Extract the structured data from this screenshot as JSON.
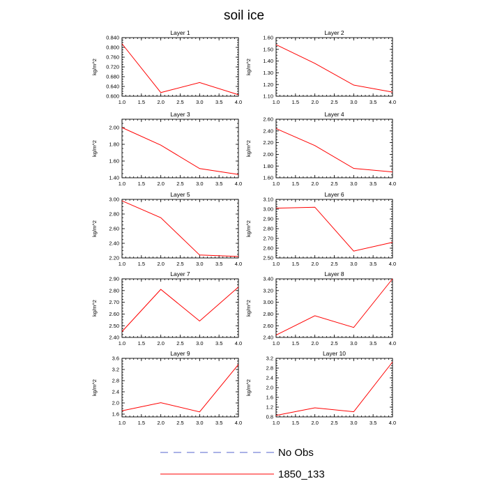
{
  "chart_data": {
    "title": "soil ice",
    "type": "line",
    "legend": [
      {
        "label": "No Obs",
        "color": "#5566cc",
        "dashed": true
      },
      {
        "label": "1850_133",
        "color": "#ff0000",
        "dashed": false
      }
    ],
    "panels": [
      {
        "title": "Layer 1",
        "ylabel": "kg/m^2",
        "xlim": [
          1.0,
          4.0
        ],
        "ylim": [
          0.6,
          0.84
        ],
        "xticks": [
          "1.0",
          "1.5",
          "2.0",
          "2.5",
          "3.0",
          "3.5",
          "4.0"
        ],
        "yticks": [
          "0.600",
          "0.640",
          "0.680",
          "0.720",
          "0.760",
          "0.800",
          "0.840"
        ],
        "x": [
          1,
          2,
          3,
          4
        ],
        "values": [
          0.815,
          0.615,
          0.656,
          0.606
        ]
      },
      {
        "title": "Layer 2",
        "ylabel": "kg/m^2",
        "xlim": [
          1.0,
          4.0
        ],
        "ylim": [
          1.1,
          1.6
        ],
        "xticks": [
          "1.0",
          "1.5",
          "2.0",
          "2.5",
          "3.0",
          "3.5",
          "4.0"
        ],
        "yticks": [
          "1.10",
          "1.20",
          "1.30",
          "1.40",
          "1.50",
          "1.60"
        ],
        "x": [
          1,
          2,
          3,
          4
        ],
        "values": [
          1.54,
          1.38,
          1.195,
          1.135
        ]
      },
      {
        "title": "Layer 3",
        "ylabel": "kg/m^2",
        "xlim": [
          1.0,
          4.0
        ],
        "ylim": [
          1.4,
          2.1
        ],
        "xticks": [
          "1.0",
          "1.5",
          "2.0",
          "2.5",
          "3.0",
          "3.5",
          "4.0"
        ],
        "yticks": [
          "1.40",
          "1.60",
          "1.80",
          "2.00"
        ],
        "x": [
          1,
          2,
          3,
          4
        ],
        "values": [
          2.0,
          1.79,
          1.51,
          1.44
        ]
      },
      {
        "title": "Layer 4",
        "ylabel": "kg/m^2",
        "xlim": [
          1.0,
          4.0
        ],
        "ylim": [
          1.6,
          2.6
        ],
        "xticks": [
          "1.0",
          "1.5",
          "2.0",
          "2.5",
          "3.0",
          "3.5",
          "4.0"
        ],
        "yticks": [
          "1.60",
          "1.80",
          "2.00",
          "2.20",
          "2.40",
          "2.60"
        ],
        "x": [
          1,
          2,
          3,
          4
        ],
        "values": [
          2.44,
          2.15,
          1.76,
          1.7
        ]
      },
      {
        "title": "Layer 5",
        "ylabel": "kg/m^2",
        "xlim": [
          1.0,
          4.0
        ],
        "ylim": [
          2.2,
          3.0
        ],
        "xticks": [
          "1.0",
          "1.5",
          "2.0",
          "2.5",
          "3.0",
          "3.5",
          "4.0"
        ],
        "yticks": [
          "2.20",
          "2.40",
          "2.60",
          "2.80",
          "3.00"
        ],
        "x": [
          1,
          2,
          3,
          4
        ],
        "values": [
          2.98,
          2.75,
          2.24,
          2.22
        ]
      },
      {
        "title": "Layer 6",
        "ylabel": "kg/m^2",
        "xlim": [
          1.0,
          4.0
        ],
        "ylim": [
          2.5,
          3.1
        ],
        "xticks": [
          "1.0",
          "1.5",
          "2.0",
          "2.5",
          "3.0",
          "3.5",
          "4.0"
        ],
        "yticks": [
          "2.50",
          "2.60",
          "2.70",
          "2.80",
          "2.90",
          "3.00",
          "3.10"
        ],
        "x": [
          1,
          2,
          3,
          4
        ],
        "values": [
          3.01,
          3.02,
          2.57,
          2.66
        ]
      },
      {
        "title": "Layer 7",
        "ylabel": "kg/m^2",
        "xlim": [
          1.0,
          4.0
        ],
        "ylim": [
          2.4,
          2.9
        ],
        "xticks": [
          "1.0",
          "1.5",
          "2.0",
          "2.5",
          "3.0",
          "3.5",
          "4.0"
        ],
        "yticks": [
          "2.40",
          "2.50",
          "2.60",
          "2.70",
          "2.80",
          "2.90"
        ],
        "x": [
          1,
          2,
          3,
          4
        ],
        "values": [
          2.45,
          2.81,
          2.54,
          2.83
        ]
      },
      {
        "title": "Layer 8",
        "ylabel": "kg/m^2",
        "xlim": [
          1.0,
          4.0
        ],
        "ylim": [
          2.4,
          3.4
        ],
        "xticks": [
          "1.0",
          "1.5",
          "2.0",
          "2.5",
          "3.0",
          "3.5",
          "4.0"
        ],
        "yticks": [
          "2.40",
          "2.60",
          "2.80",
          "3.00",
          "3.20",
          "3.40"
        ],
        "x": [
          1,
          2,
          3,
          4
        ],
        "values": [
          2.44,
          2.77,
          2.57,
          3.4
        ]
      },
      {
        "title": "Layer 9",
        "ylabel": "kg/m^2",
        "xlim": [
          1.0,
          4.0
        ],
        "ylim": [
          1.5,
          3.6
        ],
        "xticks": [
          "1.0",
          "1.5",
          "2.0",
          "2.5",
          "3.0",
          "3.5",
          "4.0"
        ],
        "yticks": [
          "1.6",
          "2.0",
          "2.4",
          "2.8",
          "3.2",
          "3.6"
        ],
        "x": [
          1,
          2,
          3,
          4
        ],
        "values": [
          1.72,
          2.01,
          1.68,
          3.38
        ]
      },
      {
        "title": "Layer 10",
        "ylabel": "kg/m^2",
        "xlim": [
          1.0,
          4.0
        ],
        "ylim": [
          0.8,
          3.2
        ],
        "xticks": [
          "1.0",
          "1.5",
          "2.0",
          "2.5",
          "3.0",
          "3.5",
          "4.0"
        ],
        "yticks": [
          "0.8",
          "1.2",
          "1.6",
          "2.0",
          "2.4",
          "2.8",
          "3.2"
        ],
        "x": [
          1,
          2,
          3,
          4
        ],
        "values": [
          0.86,
          1.17,
          1.01,
          3.05
        ]
      }
    ]
  }
}
